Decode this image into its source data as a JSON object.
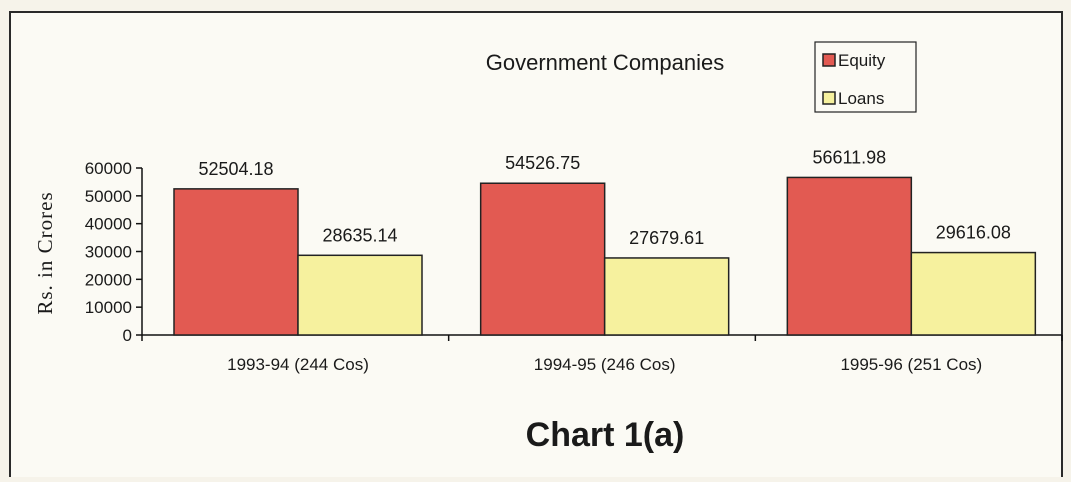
{
  "chart_data": {
    "type": "bar",
    "title": "Government Companies",
    "ylabel": "Rs. in Crores",
    "xlabel": "",
    "caption": "Chart 1(a)",
    "categories": [
      "1993-94 (244 Cos)",
      "1994-95 (246 Cos)",
      "1995-96 (251 Cos)"
    ],
    "series": [
      {
        "name": "Equity",
        "values": [
          52504.18,
          54526.75,
          56611.98
        ],
        "color": "#e25a52"
      },
      {
        "name": "Loans",
        "values": [
          28635.14,
          27679.61,
          29616.08
        ],
        "color": "#f6f19e"
      }
    ],
    "value_labels": {
      "Equity": [
        "52504.18",
        "54526.75",
        "56611.98"
      ],
      "Loans": [
        "28635.14",
        "27679.61",
        "29616.08"
      ]
    },
    "ylim": [
      0,
      60000
    ],
    "yticks": [
      0,
      10000,
      20000,
      30000,
      40000,
      50000,
      60000
    ],
    "legend": "top-right",
    "grid": false
  }
}
